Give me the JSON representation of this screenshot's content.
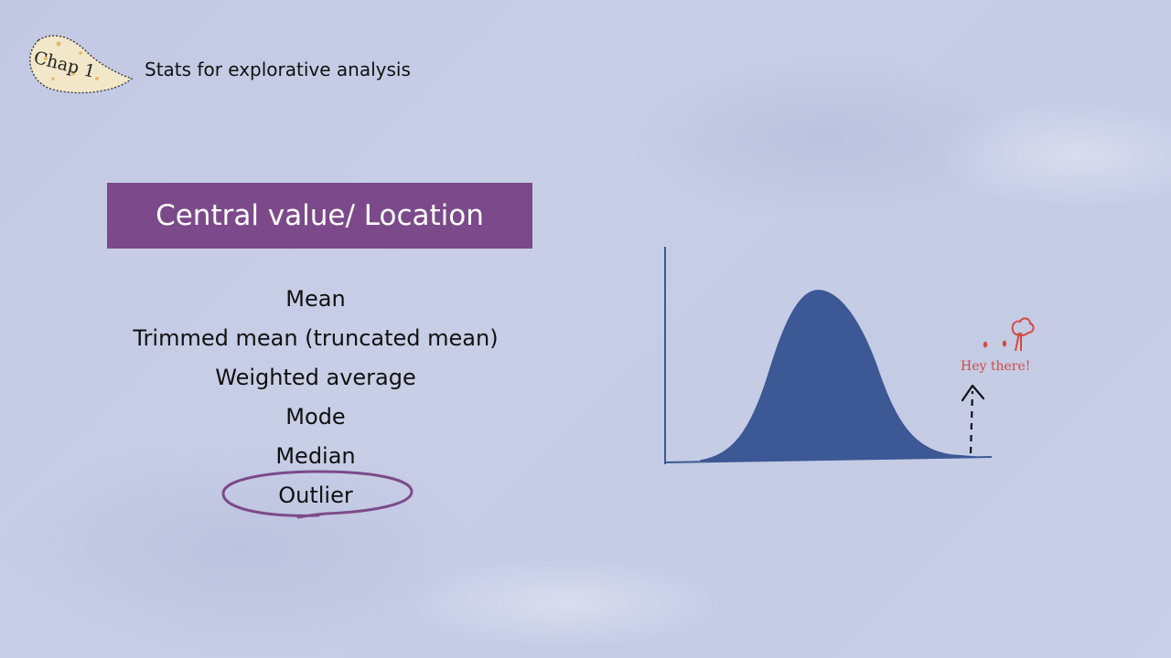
{
  "chapter": {
    "badge_label": "Chap 1",
    "title": "Stats for explorative analysis"
  },
  "section": {
    "heading": "Central value/ Location"
  },
  "terms": [
    "Mean",
    "Trimmed mean (truncated mean)",
    "Weighted average",
    "Mode",
    "Median",
    "Outlier"
  ],
  "highlighted_term": "Outlier",
  "illustration": {
    "outlier_callout": "Hey there!"
  },
  "colors": {
    "banner": "#7c4a8a",
    "curve_fill": "#3c5895",
    "axis": "#3c5895",
    "callout": "#d24a42",
    "highlight_ring": "#7c4a8a"
  }
}
